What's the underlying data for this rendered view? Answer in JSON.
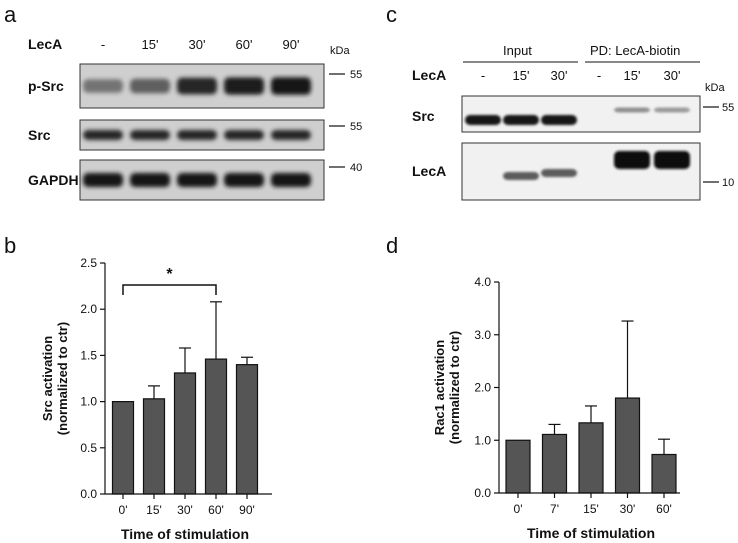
{
  "panels": {
    "a": {
      "letter": "a",
      "header_label": "LecA",
      "lanes": [
        "-",
        "15'",
        "30'",
        "60'",
        "90'"
      ],
      "kda_label": "kDa",
      "blots": [
        {
          "label": "p-Src",
          "marker": "55",
          "intensity": [
            0.45,
            0.55,
            0.85,
            0.9,
            0.95
          ]
        },
        {
          "label": "Src",
          "marker": "55",
          "intensity": [
            0.85,
            0.85,
            0.85,
            0.85,
            0.85
          ]
        },
        {
          "label": "GAPDH",
          "marker": "40",
          "intensity": [
            0.95,
            0.95,
            0.95,
            0.95,
            0.95
          ]
        }
      ]
    },
    "c": {
      "letter": "c",
      "group_input": "Input",
      "group_pd": "PD: LecA-biotin",
      "header_label": "LecA",
      "lanes": [
        "-",
        "15'",
        "30'",
        "-",
        "15'",
        "30'"
      ],
      "kda_label": "kDa",
      "blots": [
        {
          "label": "Src",
          "marker": "55",
          "intensity": [
            0.95,
            0.95,
            0.95,
            0.0,
            0.35,
            0.3
          ]
        },
        {
          "label": "LecA",
          "marker": "10",
          "intensity": [
            0.0,
            0.6,
            0.6,
            0.0,
            0.98,
            0.98
          ]
        }
      ]
    }
  },
  "chart_data": [
    {
      "panel": "b",
      "type": "bar",
      "categories": [
        "0'",
        "15'",
        "30'",
        "60'",
        "90'"
      ],
      "values": [
        1.0,
        1.03,
        1.31,
        1.46,
        1.4
      ],
      "errors": [
        0.0,
        0.14,
        0.27,
        0.62,
        0.08
      ],
      "xlabel": "Time of stimulation",
      "ylabel_line1": "Src activation",
      "ylabel_line2": "(normalized to ctr)",
      "ylim": [
        0,
        2.5
      ],
      "yticks": [
        "0.0",
        "0.5",
        "1.0",
        "1.5",
        "2.0",
        "2.5"
      ],
      "significance": {
        "from": 0,
        "to": 3,
        "label": "*"
      },
      "bar_color": "#555555"
    },
    {
      "panel": "d",
      "type": "bar",
      "categories": [
        "0'",
        "7'",
        "15'",
        "30'",
        "60'"
      ],
      "values": [
        1.0,
        1.11,
        1.33,
        1.8,
        0.73
      ],
      "errors": [
        0.0,
        0.19,
        0.32,
        1.46,
        0.29
      ],
      "xlabel": "Time of stimulation",
      "ylabel_line1": "Rac1 activation",
      "ylabel_line2": "(normalized to ctr)",
      "ylim": [
        0,
        4.0
      ],
      "yticks": [
        "0.0",
        "1.0",
        "2.0",
        "3.0",
        "4.0"
      ],
      "bar_color": "#555555"
    }
  ],
  "panel_letters": {
    "b": "b",
    "d": "d"
  }
}
